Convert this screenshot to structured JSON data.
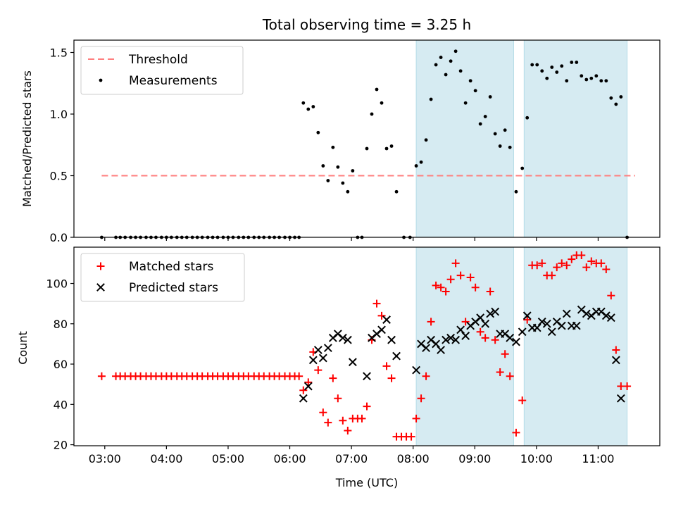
{
  "title": "Total observing time = 3.25 h",
  "colors": {
    "shade": "#add8e6",
    "threshold": "#ff7f7f",
    "measurement": "#000000",
    "matched": "#ff0000",
    "predicted": "#000000"
  },
  "chart_data": [
    {
      "type": "scatter",
      "ylabel": "Matched/Predicted stars",
      "xlim": [
        2.5,
        12.0
      ],
      "ylim": [
        0,
        1.6
      ],
      "yticks": [
        0,
        0.5,
        1.0,
        1.5
      ],
      "ytick_labels": [
        "0.0",
        "0.5",
        "1.0",
        "1.5"
      ],
      "legend_position": "upper-left",
      "shaded_intervals": [
        [
          8.05,
          9.63
        ],
        [
          9.8,
          11.47
        ]
      ],
      "threshold": {
        "name": "Threshold",
        "y": 0.5,
        "x": [
          2.95,
          11.6
        ]
      },
      "series": [
        {
          "name": "Measurements",
          "marker": "dot",
          "points": [
            [
              2.95,
              0
            ],
            [
              3.18,
              0
            ],
            [
              3.25,
              0
            ],
            [
              3.33,
              0
            ],
            [
              3.42,
              0
            ],
            [
              3.5,
              0
            ],
            [
              3.58,
              0
            ],
            [
              3.67,
              0
            ],
            [
              3.75,
              0
            ],
            [
              3.83,
              0
            ],
            [
              3.92,
              0
            ],
            [
              4.0,
              0
            ],
            [
              4.08,
              0
            ],
            [
              4.17,
              0
            ],
            [
              4.25,
              0
            ],
            [
              4.33,
              0
            ],
            [
              4.42,
              0
            ],
            [
              4.5,
              0
            ],
            [
              4.58,
              0
            ],
            [
              4.67,
              0
            ],
            [
              4.75,
              0
            ],
            [
              4.83,
              0
            ],
            [
              4.92,
              0
            ],
            [
              5.0,
              0
            ],
            [
              5.08,
              0
            ],
            [
              5.17,
              0
            ],
            [
              5.25,
              0
            ],
            [
              5.33,
              0
            ],
            [
              5.42,
              0
            ],
            [
              5.5,
              0
            ],
            [
              5.58,
              0
            ],
            [
              5.67,
              0
            ],
            [
              5.75,
              0
            ],
            [
              5.83,
              0
            ],
            [
              5.92,
              0
            ],
            [
              6.0,
              0
            ],
            [
              6.08,
              0
            ],
            [
              6.15,
              0
            ],
            [
              6.22,
              1.09
            ],
            [
              6.3,
              1.04
            ],
            [
              6.38,
              1.06
            ],
            [
              6.46,
              0.85
            ],
            [
              6.54,
              0.58
            ],
            [
              6.62,
              0.46
            ],
            [
              6.7,
              0.73
            ],
            [
              6.78,
              0.57
            ],
            [
              6.86,
              0.44
            ],
            [
              6.94,
              0.37
            ],
            [
              7.02,
              0.54
            ],
            [
              7.1,
              0
            ],
            [
              7.17,
              0
            ],
            [
              7.25,
              0.72
            ],
            [
              7.33,
              1.0
            ],
            [
              7.41,
              1.2
            ],
            [
              7.49,
              1.09
            ],
            [
              7.57,
              0.72
            ],
            [
              7.65,
              0.74
            ],
            [
              7.73,
              0.37
            ],
            [
              7.85,
              0
            ],
            [
              7.95,
              0
            ],
            [
              8.05,
              0.58
            ],
            [
              8.13,
              0.61
            ],
            [
              8.21,
              0.79
            ],
            [
              8.29,
              1.12
            ],
            [
              8.37,
              1.4
            ],
            [
              8.45,
              1.46
            ],
            [
              8.53,
              1.32
            ],
            [
              8.61,
              1.43
            ],
            [
              8.69,
              1.51
            ],
            [
              8.77,
              1.35
            ],
            [
              8.85,
              1.09
            ],
            [
              8.93,
              1.27
            ],
            [
              9.01,
              1.19
            ],
            [
              9.09,
              0.92
            ],
            [
              9.17,
              0.98
            ],
            [
              9.25,
              1.14
            ],
            [
              9.33,
              0.84
            ],
            [
              9.41,
              0.74
            ],
            [
              9.49,
              0.87
            ],
            [
              9.57,
              0.73
            ],
            [
              9.67,
              0.37
            ],
            [
              9.77,
              0.56
            ],
            [
              9.85,
              0.97
            ],
            [
              9.93,
              1.4
            ],
            [
              10.01,
              1.4
            ],
            [
              10.09,
              1.35
            ],
            [
              10.17,
              1.29
            ],
            [
              10.25,
              1.38
            ],
            [
              10.33,
              1.34
            ],
            [
              10.41,
              1.39
            ],
            [
              10.49,
              1.27
            ],
            [
              10.57,
              1.42
            ],
            [
              10.65,
              1.42
            ],
            [
              10.73,
              1.31
            ],
            [
              10.81,
              1.28
            ],
            [
              10.89,
              1.29
            ],
            [
              10.97,
              1.31
            ],
            [
              11.05,
              1.27
            ],
            [
              11.13,
              1.27
            ],
            [
              11.21,
              1.13
            ],
            [
              11.29,
              1.08
            ],
            [
              11.37,
              1.14
            ],
            [
              11.47,
              0
            ]
          ]
        }
      ]
    },
    {
      "type": "scatter",
      "xlabel": "Time (UTC)",
      "ylabel": "Count",
      "xlim": [
        2.5,
        12.0
      ],
      "ylim": [
        19.5,
        118
      ],
      "yticks": [
        20,
        40,
        60,
        80,
        100
      ],
      "ytick_labels": [
        "20",
        "40",
        "60",
        "80",
        "100"
      ],
      "xticks": [
        3,
        4,
        5,
        6,
        7,
        8,
        9,
        10,
        11
      ],
      "xtick_labels": [
        "03:00",
        "04:00",
        "05:00",
        "06:00",
        "07:00",
        "08:00",
        "09:00",
        "10:00",
        "11:00"
      ],
      "legend_position": "upper-left",
      "shaded_intervals": [
        [
          8.05,
          9.63
        ],
        [
          9.8,
          11.47
        ]
      ],
      "series": [
        {
          "name": "Matched stars",
          "marker": "plus",
          "points": [
            [
              2.95,
              54
            ],
            [
              3.18,
              54
            ],
            [
              3.25,
              54
            ],
            [
              3.33,
              54
            ],
            [
              3.42,
              54
            ],
            [
              3.5,
              54
            ],
            [
              3.58,
              54
            ],
            [
              3.67,
              54
            ],
            [
              3.75,
              54
            ],
            [
              3.83,
              54
            ],
            [
              3.92,
              54
            ],
            [
              4.0,
              54
            ],
            [
              4.08,
              54
            ],
            [
              4.17,
              54
            ],
            [
              4.25,
              54
            ],
            [
              4.33,
              54
            ],
            [
              4.42,
              54
            ],
            [
              4.5,
              54
            ],
            [
              4.58,
              54
            ],
            [
              4.67,
              54
            ],
            [
              4.75,
              54
            ],
            [
              4.83,
              54
            ],
            [
              4.92,
              54
            ],
            [
              5.0,
              54
            ],
            [
              5.08,
              54
            ],
            [
              5.17,
              54
            ],
            [
              5.25,
              54
            ],
            [
              5.33,
              54
            ],
            [
              5.42,
              54
            ],
            [
              5.5,
              54
            ],
            [
              5.58,
              54
            ],
            [
              5.67,
              54
            ],
            [
              5.75,
              54
            ],
            [
              5.83,
              54
            ],
            [
              5.92,
              54
            ],
            [
              6.0,
              54
            ],
            [
              6.08,
              54
            ],
            [
              6.15,
              54
            ],
            [
              6.22,
              47
            ],
            [
              6.3,
              51
            ],
            [
              6.38,
              66
            ],
            [
              6.46,
              57
            ],
            [
              6.54,
              36
            ],
            [
              6.62,
              31
            ],
            [
              6.7,
              53
            ],
            [
              6.78,
              43
            ],
            [
              6.86,
              32
            ],
            [
              6.94,
              27
            ],
            [
              7.02,
              33
            ],
            [
              7.1,
              33
            ],
            [
              7.17,
              33
            ],
            [
              7.25,
              39
            ],
            [
              7.33,
              72
            ],
            [
              7.41,
              90
            ],
            [
              7.49,
              84
            ],
            [
              7.57,
              59
            ],
            [
              7.65,
              53
            ],
            [
              7.73,
              24
            ],
            [
              7.81,
              24
            ],
            [
              7.89,
              24
            ],
            [
              7.97,
              24
            ],
            [
              8.05,
              33
            ],
            [
              8.13,
              43
            ],
            [
              8.21,
              54
            ],
            [
              8.29,
              81
            ],
            [
              8.37,
              99
            ],
            [
              8.45,
              98
            ],
            [
              8.53,
              96
            ],
            [
              8.61,
              102
            ],
            [
              8.69,
              110
            ],
            [
              8.77,
              104
            ],
            [
              8.85,
              81
            ],
            [
              8.93,
              103
            ],
            [
              9.01,
              98
            ],
            [
              9.09,
              76
            ],
            [
              9.17,
              73
            ],
            [
              9.25,
              96
            ],
            [
              9.33,
              72
            ],
            [
              9.41,
              56
            ],
            [
              9.49,
              65
            ],
            [
              9.57,
              54
            ],
            [
              9.67,
              26
            ],
            [
              9.77,
              42
            ],
            [
              9.85,
              82
            ],
            [
              9.93,
              109
            ],
            [
              10.01,
              109
            ],
            [
              10.09,
              110
            ],
            [
              10.17,
              104
            ],
            [
              10.25,
              104
            ],
            [
              10.33,
              108
            ],
            [
              10.41,
              110
            ],
            [
              10.49,
              109
            ],
            [
              10.57,
              112
            ],
            [
              10.65,
              114
            ],
            [
              10.73,
              114
            ],
            [
              10.81,
              108
            ],
            [
              10.89,
              111
            ],
            [
              10.97,
              110
            ],
            [
              11.05,
              110
            ],
            [
              11.13,
              107
            ],
            [
              11.21,
              94
            ],
            [
              11.29,
              67
            ],
            [
              11.37,
              49
            ],
            [
              11.47,
              49
            ]
          ]
        },
        {
          "name": "Predicted stars",
          "marker": "x",
          "points": [
            [
              6.22,
              43
            ],
            [
              6.3,
              49
            ],
            [
              6.38,
              62
            ],
            [
              6.46,
              67
            ],
            [
              6.54,
              63
            ],
            [
              6.62,
              68
            ],
            [
              6.7,
              73
            ],
            [
              6.78,
              75
            ],
            [
              6.86,
              73
            ],
            [
              6.94,
              72
            ],
            [
              7.02,
              61
            ],
            [
              7.25,
              54
            ],
            [
              7.33,
              73
            ],
            [
              7.41,
              75
            ],
            [
              7.49,
              77
            ],
            [
              7.57,
              82
            ],
            [
              7.65,
              72
            ],
            [
              7.73,
              64
            ],
            [
              8.05,
              57
            ],
            [
              8.13,
              70
            ],
            [
              8.21,
              68
            ],
            [
              8.29,
              72
            ],
            [
              8.37,
              70
            ],
            [
              8.45,
              67
            ],
            [
              8.53,
              72
            ],
            [
              8.61,
              73
            ],
            [
              8.69,
              72
            ],
            [
              8.77,
              77
            ],
            [
              8.85,
              74
            ],
            [
              8.93,
              79
            ],
            [
              9.01,
              81
            ],
            [
              9.09,
              83
            ],
            [
              9.17,
              80
            ],
            [
              9.25,
              85
            ],
            [
              9.33,
              86
            ],
            [
              9.41,
              75
            ],
            [
              9.49,
              75
            ],
            [
              9.57,
              73
            ],
            [
              9.67,
              71
            ],
            [
              9.77,
              76
            ],
            [
              9.85,
              84
            ],
            [
              9.93,
              78
            ],
            [
              10.01,
              78
            ],
            [
              10.09,
              81
            ],
            [
              10.17,
              80
            ],
            [
              10.25,
              76
            ],
            [
              10.33,
              81
            ],
            [
              10.41,
              79
            ],
            [
              10.49,
              85
            ],
            [
              10.57,
              79
            ],
            [
              10.65,
              79
            ],
            [
              10.73,
              87
            ],
            [
              10.81,
              85
            ],
            [
              10.89,
              84
            ],
            [
              10.97,
              86
            ],
            [
              11.05,
              86
            ],
            [
              11.13,
              84
            ],
            [
              11.21,
              83
            ],
            [
              11.29,
              62
            ],
            [
              11.37,
              43
            ]
          ]
        }
      ]
    }
  ]
}
